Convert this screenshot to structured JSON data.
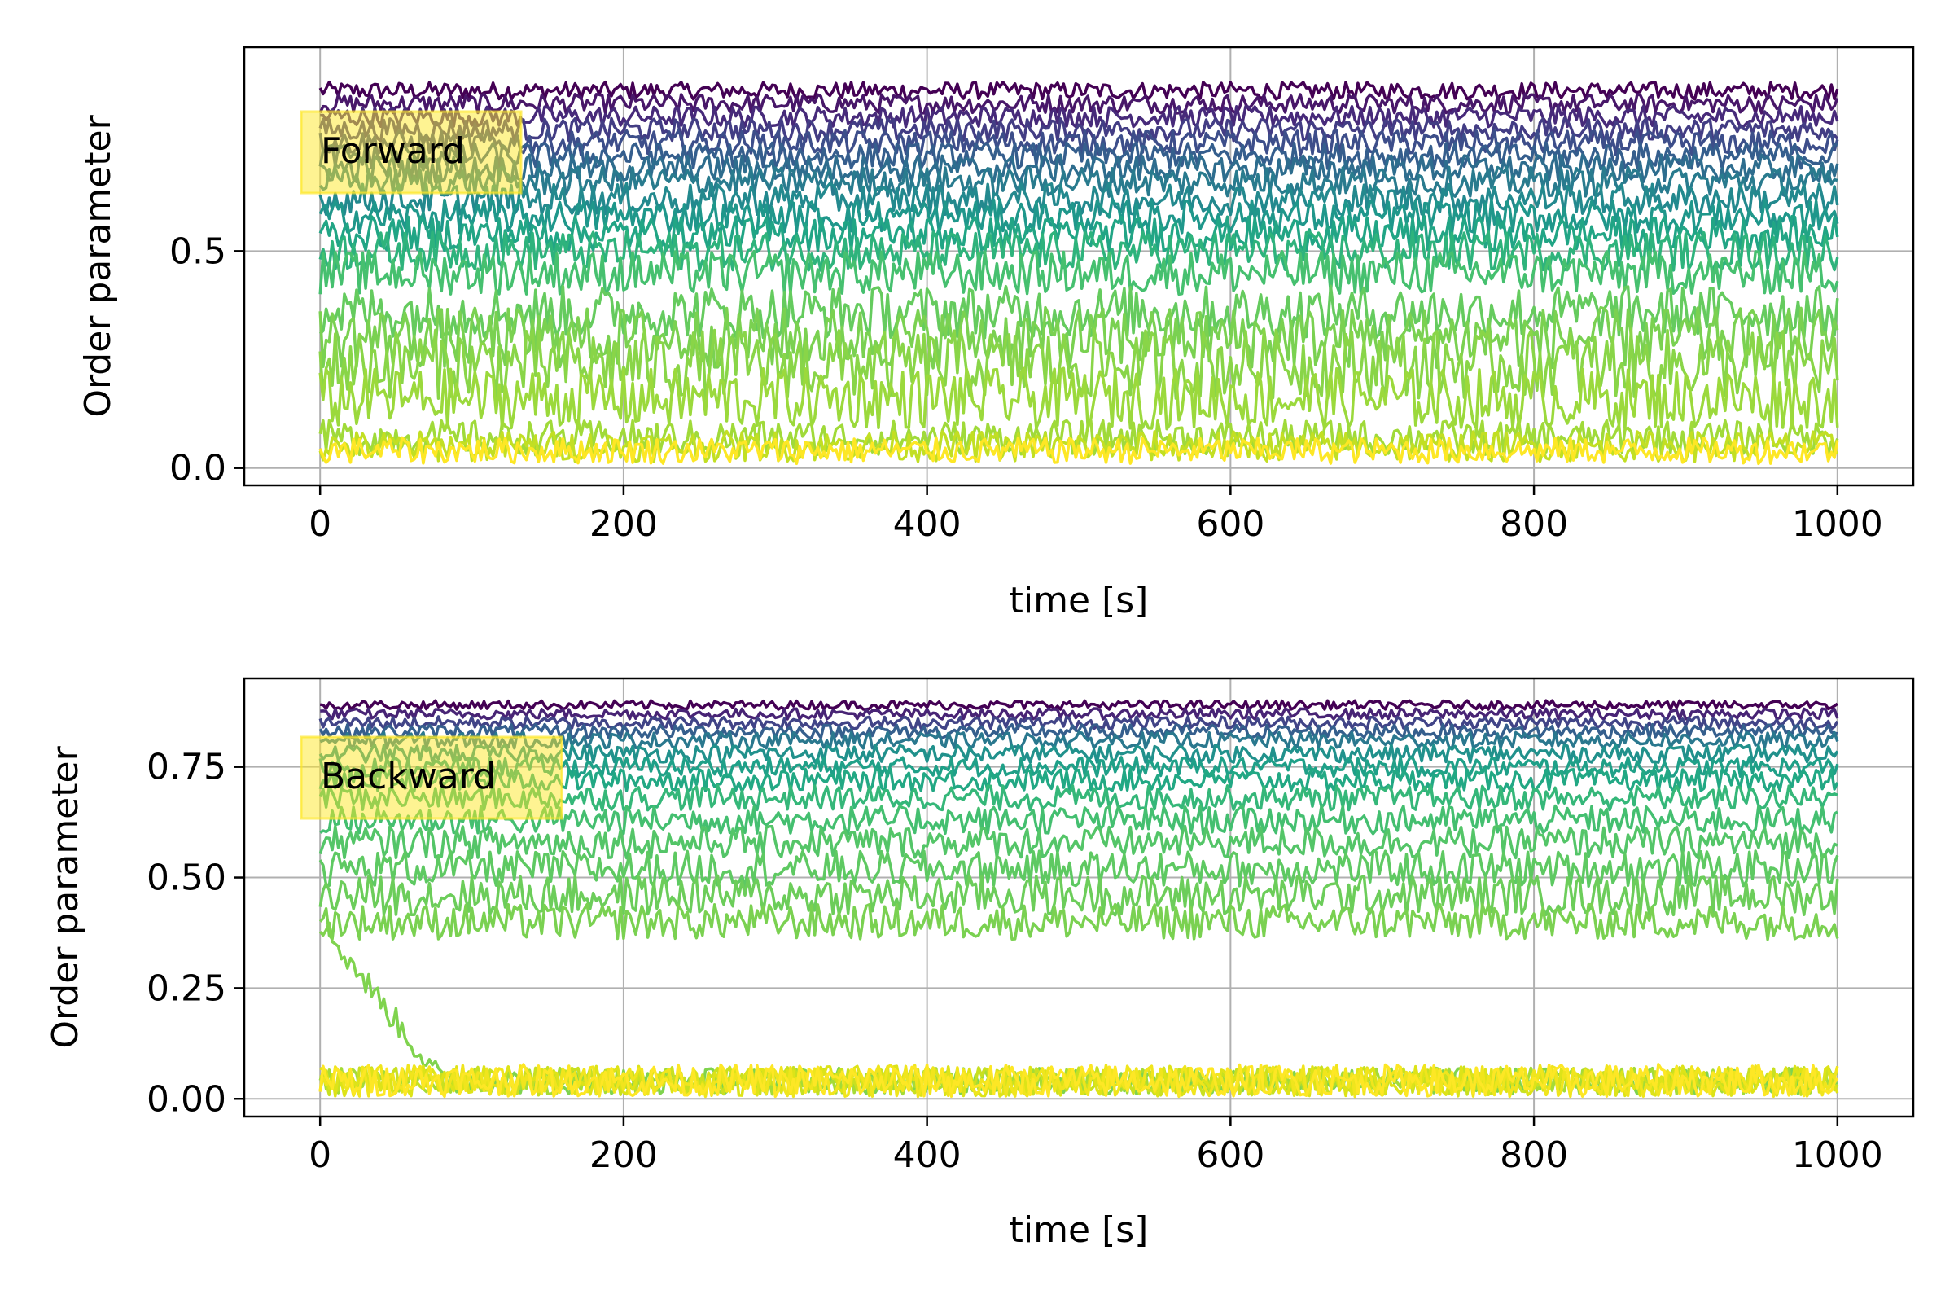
{
  "figure": {
    "grid": true,
    "colormap": "viridis",
    "colormap_stops": [
      "#440154",
      "#3b528b",
      "#21918c",
      "#5ec962",
      "#fde725"
    ]
  },
  "chart_data": [
    {
      "type": "line",
      "title": "",
      "annotation": "Forward",
      "annotation_box_color": "#fde725",
      "xlabel": "time [s]",
      "ylabel": "Order parameter",
      "xlim": [
        -50,
        1050
      ],
      "ylim": [
        -0.04,
        0.97
      ],
      "x_ticks": [
        0,
        200,
        400,
        600,
        800,
        1000
      ],
      "x_tick_labels": [
        "0",
        "200",
        "400",
        "600",
        "800",
        "1000"
      ],
      "y_ticks": [
        0.0,
        0.5
      ],
      "y_tick_labels": [
        "0.0",
        "0.5"
      ],
      "x_range": [
        0,
        1000
      ],
      "series_count": 20,
      "series": [
        {
          "color": "#440154",
          "mean": 0.87,
          "amp": 0.02,
          "transient": null
        },
        {
          "color": "#481769",
          "mean": 0.84,
          "amp": 0.022,
          "transient": null
        },
        {
          "color": "#472a7a",
          "mean": 0.81,
          "amp": 0.024,
          "transient": null
        },
        {
          "color": "#433d84",
          "mean": 0.78,
          "amp": 0.026,
          "transient": null
        },
        {
          "color": "#3d4e8a",
          "mean": 0.75,
          "amp": 0.028,
          "transient": null
        },
        {
          "color": "#355e8d",
          "mean": 0.72,
          "amp": 0.03,
          "transient": null
        },
        {
          "color": "#2e6d8e",
          "mean": 0.69,
          "amp": 0.032,
          "transient": null
        },
        {
          "color": "#297b8e",
          "mean": 0.66,
          "amp": 0.034,
          "transient": null
        },
        {
          "color": "#23898e",
          "mean": 0.62,
          "amp": 0.036,
          "transient": null
        },
        {
          "color": "#1f978b",
          "mean": 0.58,
          "amp": 0.038,
          "transient": null
        },
        {
          "color": "#21a585",
          "mean": 0.54,
          "amp": 0.04,
          "transient": null
        },
        {
          "color": "#2eb37c",
          "mean": 0.5,
          "amp": 0.045,
          "transient": null
        },
        {
          "color": "#46c06f",
          "mean": 0.45,
          "amp": 0.05,
          "transient": null
        },
        {
          "color": "#65cb5e",
          "mean": 0.36,
          "amp": 0.06,
          "transient": null
        },
        {
          "color": "#7ad151",
          "mean": 0.3,
          "amp": 0.07,
          "transient": null
        },
        {
          "color": "#89d548",
          "mean": 0.24,
          "amp": 0.08,
          "transient": null
        },
        {
          "color": "#9bd93c",
          "mean": 0.16,
          "amp": 0.07,
          "transient": null
        },
        {
          "color": "#a0da39",
          "mean": 0.07,
          "amp": 0.04,
          "transient": null
        },
        {
          "color": "#c2df23",
          "mean": 0.05,
          "amp": 0.035,
          "transient": null
        },
        {
          "color": "#fde725",
          "mean": 0.04,
          "amp": 0.03,
          "transient": null
        }
      ]
    },
    {
      "type": "line",
      "title": "",
      "annotation": "Backward",
      "annotation_box_color": "#fde725",
      "xlabel": "time [s]",
      "ylabel": "Order parameter",
      "xlim": [
        -50,
        1050
      ],
      "ylim": [
        -0.04,
        0.95
      ],
      "x_ticks": [
        0,
        200,
        400,
        600,
        800,
        1000
      ],
      "x_tick_labels": [
        "0",
        "200",
        "400",
        "600",
        "800",
        "1000"
      ],
      "y_ticks": [
        0.0,
        0.25,
        0.5,
        0.75
      ],
      "y_tick_labels": [
        "0.00",
        "0.25",
        "0.50",
        "0.75"
      ],
      "x_range": [
        0,
        1000
      ],
      "series_count": 20,
      "series": [
        {
          "color": "#440154",
          "mean": 0.89,
          "amp": 0.01,
          "transient": null
        },
        {
          "color": "#482475",
          "mean": 0.87,
          "amp": 0.012,
          "transient": null
        },
        {
          "color": "#414487",
          "mean": 0.85,
          "amp": 0.014,
          "transient": null
        },
        {
          "color": "#355f8d",
          "mean": 0.83,
          "amp": 0.016,
          "transient": null
        },
        {
          "color": "#2a788e",
          "mean": 0.81,
          "amp": 0.018,
          "transient": null
        },
        {
          "color": "#21918c",
          "mean": 0.78,
          "amp": 0.02,
          "transient": null
        },
        {
          "color": "#1fa088",
          "mean": 0.75,
          "amp": 0.022,
          "transient": null
        },
        {
          "color": "#22a884",
          "mean": 0.72,
          "amp": 0.025,
          "transient": null
        },
        {
          "color": "#35b779",
          "mean": 0.68,
          "amp": 0.028,
          "transient": null
        },
        {
          "color": "#44bf70",
          "mean": 0.63,
          "amp": 0.032,
          "transient": null
        },
        {
          "color": "#54c568",
          "mean": 0.58,
          "amp": 0.036,
          "transient": null
        },
        {
          "color": "#5ec962",
          "mean": 0.52,
          "amp": 0.04,
          "transient": null
        },
        {
          "color": "#6ccd5a",
          "mean": 0.46,
          "amp": 0.045,
          "transient": null
        },
        {
          "color": "#7ad151",
          "mean": 0.4,
          "amp": 0.04,
          "transient": null
        },
        {
          "color": "#7fd34e",
          "mean": 0.04,
          "amp": 0.03,
          "transient": {
            "start": 0.4,
            "duration": 80
          }
        },
        {
          "color": "#a5db36",
          "mean": 0.04,
          "amp": 0.03,
          "transient": null
        },
        {
          "color": "#c8e020",
          "mean": 0.04,
          "amp": 0.032,
          "transient": null
        },
        {
          "color": "#dde318",
          "mean": 0.04,
          "amp": 0.034,
          "transient": null
        },
        {
          "color": "#f0e51d",
          "mean": 0.04,
          "amp": 0.036,
          "transient": null
        },
        {
          "color": "#fde725",
          "mean": 0.04,
          "amp": 0.038,
          "transient": null
        }
      ]
    }
  ]
}
